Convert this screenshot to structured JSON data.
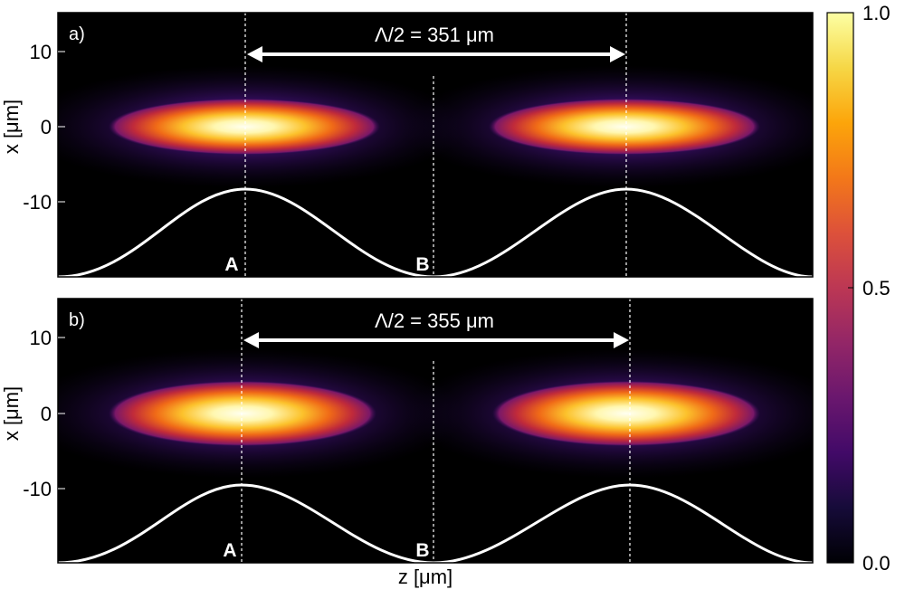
{
  "chart_data": [
    {
      "type": "heatmap",
      "panel_label": "a)",
      "xlabel": "",
      "ylabel": "x [μm]",
      "yticks": [
        10,
        0,
        -10
      ],
      "ylim": [
        -20,
        15
      ],
      "annotation": "Λ/2 = 351 μm",
      "point_labels": [
        "A",
        "B"
      ],
      "intensity_peaks_x": [
        0,
        0
      ],
      "colormap": "inferno"
    },
    {
      "type": "heatmap",
      "panel_label": "b)",
      "xlabel": "z [μm]",
      "ylabel": "x [μm]",
      "yticks": [
        10,
        0,
        -10
      ],
      "ylim": [
        -20,
        15
      ],
      "annotation": "Λ/2 = 355 μm",
      "point_labels": [
        "A",
        "B"
      ],
      "intensity_peaks_x": [
        0,
        0
      ],
      "colormap": "inferno"
    }
  ],
  "colorbar": {
    "ticks": [
      "1.0",
      "0.5",
      "0.0"
    ],
    "range": [
      0,
      1
    ]
  }
}
